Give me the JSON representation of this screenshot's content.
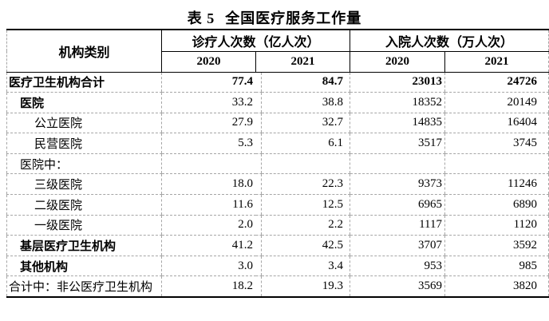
{
  "title": {
    "prefix": "表 5",
    "text": "全国医疗服务工作量"
  },
  "table": {
    "col_headers": {
      "category": "机构类别",
      "group1": "诊疗人次数（亿人次）",
      "group2": "入院人次数（万人次）",
      "years": [
        "2020",
        "2021",
        "2020",
        "2021"
      ]
    },
    "rows": [
      {
        "label": "医疗卫生机构合计",
        "indent": 0,
        "bold_label": true,
        "bold_values": true,
        "values": [
          "77.4",
          "84.7",
          "23013",
          "24726"
        ]
      },
      {
        "label": "医院",
        "indent": 1,
        "bold_label": true,
        "bold_values": false,
        "values": [
          "33.2",
          "38.8",
          "18352",
          "20149"
        ]
      },
      {
        "label": "公立医院",
        "indent": 2,
        "bold_label": false,
        "bold_values": false,
        "values": [
          "27.9",
          "32.7",
          "14835",
          "16404"
        ]
      },
      {
        "label": "民营医院",
        "indent": 2,
        "bold_label": false,
        "bold_values": false,
        "values": [
          "5.3",
          "6.1",
          "3517",
          "3745"
        ]
      },
      {
        "label": "医院中：",
        "indent": 1,
        "bold_label": false,
        "bold_values": false,
        "values": [
          "",
          "",
          "",
          ""
        ]
      },
      {
        "label": "三级医院",
        "indent": 2,
        "bold_label": false,
        "bold_values": false,
        "values": [
          "18.0",
          "22.3",
          "9373",
          "11246"
        ]
      },
      {
        "label": "二级医院",
        "indent": 2,
        "bold_label": false,
        "bold_values": false,
        "values": [
          "11.6",
          "12.5",
          "6965",
          "6890"
        ]
      },
      {
        "label": "一级医院",
        "indent": 2,
        "bold_label": false,
        "bold_values": false,
        "values": [
          "2.0",
          "2.2",
          "1117",
          "1120"
        ]
      },
      {
        "label": "基层医疗卫生机构",
        "indent": 1,
        "bold_label": true,
        "bold_values": false,
        "values": [
          "41.2",
          "42.5",
          "3707",
          "3592"
        ]
      },
      {
        "label": "其他机构",
        "indent": 1,
        "bold_label": true,
        "bold_values": false,
        "values": [
          "3.0",
          "3.4",
          "953",
          "985"
        ]
      },
      {
        "label": "合计中：非公医疗卫生机构",
        "indent": 0,
        "bold_label": false,
        "bold_values": false,
        "values": [
          "18.2",
          "19.3",
          "3569",
          "3820"
        ]
      }
    ]
  },
  "colors": {
    "text": "#000000",
    "background": "#ffffff",
    "border_dark": "#000000",
    "border_light": "#a6a6a6"
  }
}
